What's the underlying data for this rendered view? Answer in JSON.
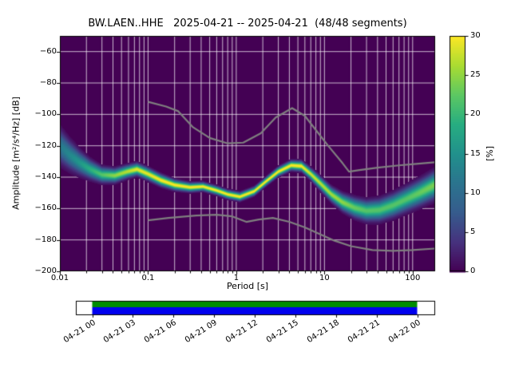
{
  "chart_data": {
    "type": "heatmap",
    "title": "BW.LAEN..HHE   2025-04-21 -- 2025-04-21  (48/48 segments)",
    "xlabel": "Period [s]",
    "ylabel": "Amplitude [m²/s⁴/Hz] [dB]",
    "xscale": "log",
    "xlim": [
      0.01,
      180
    ],
    "ylim": [
      -200,
      -50
    ],
    "xtick_values": [
      0.01,
      0.1,
      1,
      10,
      100
    ],
    "xtick_labels": [
      "0.01",
      "0.1",
      "1",
      "10",
      "100"
    ],
    "ytick_values": [
      -200,
      -180,
      -160,
      -140,
      -120,
      -100,
      -80,
      -60
    ],
    "ytick_labels": [
      "−200",
      "−180",
      "−160",
      "−140",
      "−120",
      "−100",
      "−80",
      "−60"
    ],
    "grid": true,
    "grid_color": "#ffffff",
    "frame_color": "#000000",
    "colorbar": {
      "label": "[%]",
      "min": 0,
      "max": 30,
      "tick_values": [
        0,
        5,
        10,
        15,
        20,
        25,
        30
      ],
      "tick_labels": [
        "0",
        "5",
        "10",
        "15",
        "20",
        "25",
        "30"
      ],
      "colormap": "viridis",
      "colormap_stops": [
        [
          0.0,
          "#440154"
        ],
        [
          0.125,
          "#46327e"
        ],
        [
          0.25,
          "#365c8d"
        ],
        [
          0.375,
          "#2b748e"
        ],
        [
          0.5,
          "#21918c"
        ],
        [
          0.625,
          "#27ad81"
        ],
        [
          0.75,
          "#5cc863"
        ],
        [
          0.875,
          "#aadc32"
        ],
        [
          1.0,
          "#fde725"
        ]
      ]
    },
    "psd_histogram": {
      "description": "PPSD mode curve: [period_s, mode_dB, spread_dB, peak_percent]",
      "points": [
        [
          0.01,
          -120.0,
          6.0,
          12
        ],
        [
          0.013,
          -126.0,
          5.0,
          14
        ],
        [
          0.017,
          -131.0,
          4.0,
          16
        ],
        [
          0.022,
          -135.0,
          3.2,
          19
        ],
        [
          0.03,
          -138.5,
          2.6,
          22
        ],
        [
          0.042,
          -139.0,
          2.3,
          25
        ],
        [
          0.058,
          -136.5,
          2.1,
          27
        ],
        [
          0.075,
          -135.0,
          2.0,
          29
        ],
        [
          0.1,
          -138.0,
          2.0,
          29
        ],
        [
          0.14,
          -142.0,
          1.9,
          30
        ],
        [
          0.2,
          -145.0,
          1.7,
          30
        ],
        [
          0.3,
          -146.5,
          1.5,
          30
        ],
        [
          0.42,
          -146.0,
          1.4,
          30
        ],
        [
          0.6,
          -148.5,
          1.4,
          30
        ],
        [
          0.8,
          -151.0,
          1.4,
          30
        ],
        [
          1.1,
          -152.5,
          1.4,
          30
        ],
        [
          1.6,
          -149.0,
          1.4,
          30
        ],
        [
          2.2,
          -142.5,
          1.4,
          30
        ],
        [
          3.0,
          -136.5,
          1.5,
          30
        ],
        [
          4.2,
          -132.5,
          1.6,
          30
        ],
        [
          5.5,
          -133.0,
          1.7,
          30
        ],
        [
          7.0,
          -138.0,
          1.9,
          28
        ],
        [
          9.0,
          -144.0,
          2.2,
          27
        ],
        [
          12.0,
          -151.0,
          2.4,
          26
        ],
        [
          16.0,
          -156.0,
          2.8,
          25
        ],
        [
          22.0,
          -159.5,
          3.2,
          23
        ],
        [
          30.0,
          -161.5,
          3.4,
          22
        ],
        [
          42.0,
          -161.0,
          3.6,
          22
        ],
        [
          60.0,
          -158.0,
          3.8,
          22
        ],
        [
          85.0,
          -154.0,
          4.0,
          22
        ],
        [
          120.0,
          -150.0,
          4.2,
          23
        ],
        [
          178.0,
          -145.0,
          4.5,
          24
        ]
      ]
    },
    "noise_models": {
      "color": "#7f7f7f",
      "nhnm": [
        [
          0.1,
          -92
        ],
        [
          0.16,
          -95
        ],
        [
          0.22,
          -98
        ],
        [
          0.32,
          -108
        ],
        [
          0.5,
          -115
        ],
        [
          0.8,
          -118.5
        ],
        [
          1.2,
          -118
        ],
        [
          1.9,
          -112
        ],
        [
          2.8,
          -102
        ],
        [
          4.3,
          -96
        ],
        [
          6.0,
          -101
        ],
        [
          8.0,
          -110
        ],
        [
          11,
          -120
        ],
        [
          16,
          -131
        ],
        [
          19,
          -136.5
        ],
        [
          25,
          -135.5
        ],
        [
          40,
          -134
        ],
        [
          70,
          -132.5
        ],
        [
          110,
          -131.5
        ],
        [
          178,
          -130.5
        ]
      ],
      "nlnm": [
        [
          0.1,
          -167.5
        ],
        [
          0.17,
          -166
        ],
        [
          0.35,
          -164.5
        ],
        [
          0.6,
          -164
        ],
        [
          0.9,
          -165
        ],
        [
          1.3,
          -168.5
        ],
        [
          1.8,
          -167
        ],
        [
          2.6,
          -166
        ],
        [
          4.0,
          -168.5
        ],
        [
          6.0,
          -172
        ],
        [
          9.0,
          -176.5
        ],
        [
          13,
          -180.5
        ],
        [
          20,
          -184
        ],
        [
          35,
          -186.5
        ],
        [
          60,
          -187
        ],
        [
          100,
          -186.5
        ],
        [
          178,
          -185.5
        ]
      ]
    },
    "timeline": {
      "tick_labels": [
        "04-21 00",
        "04-21 03",
        "04-21 06",
        "04-21 09",
        "04-21 12",
        "04-21 15",
        "04-21 18",
        "04-21 21",
        "04-22 00"
      ],
      "data_color": "#008c00",
      "segment_color": "#0000ee",
      "bar_background": "#ffffff"
    }
  }
}
